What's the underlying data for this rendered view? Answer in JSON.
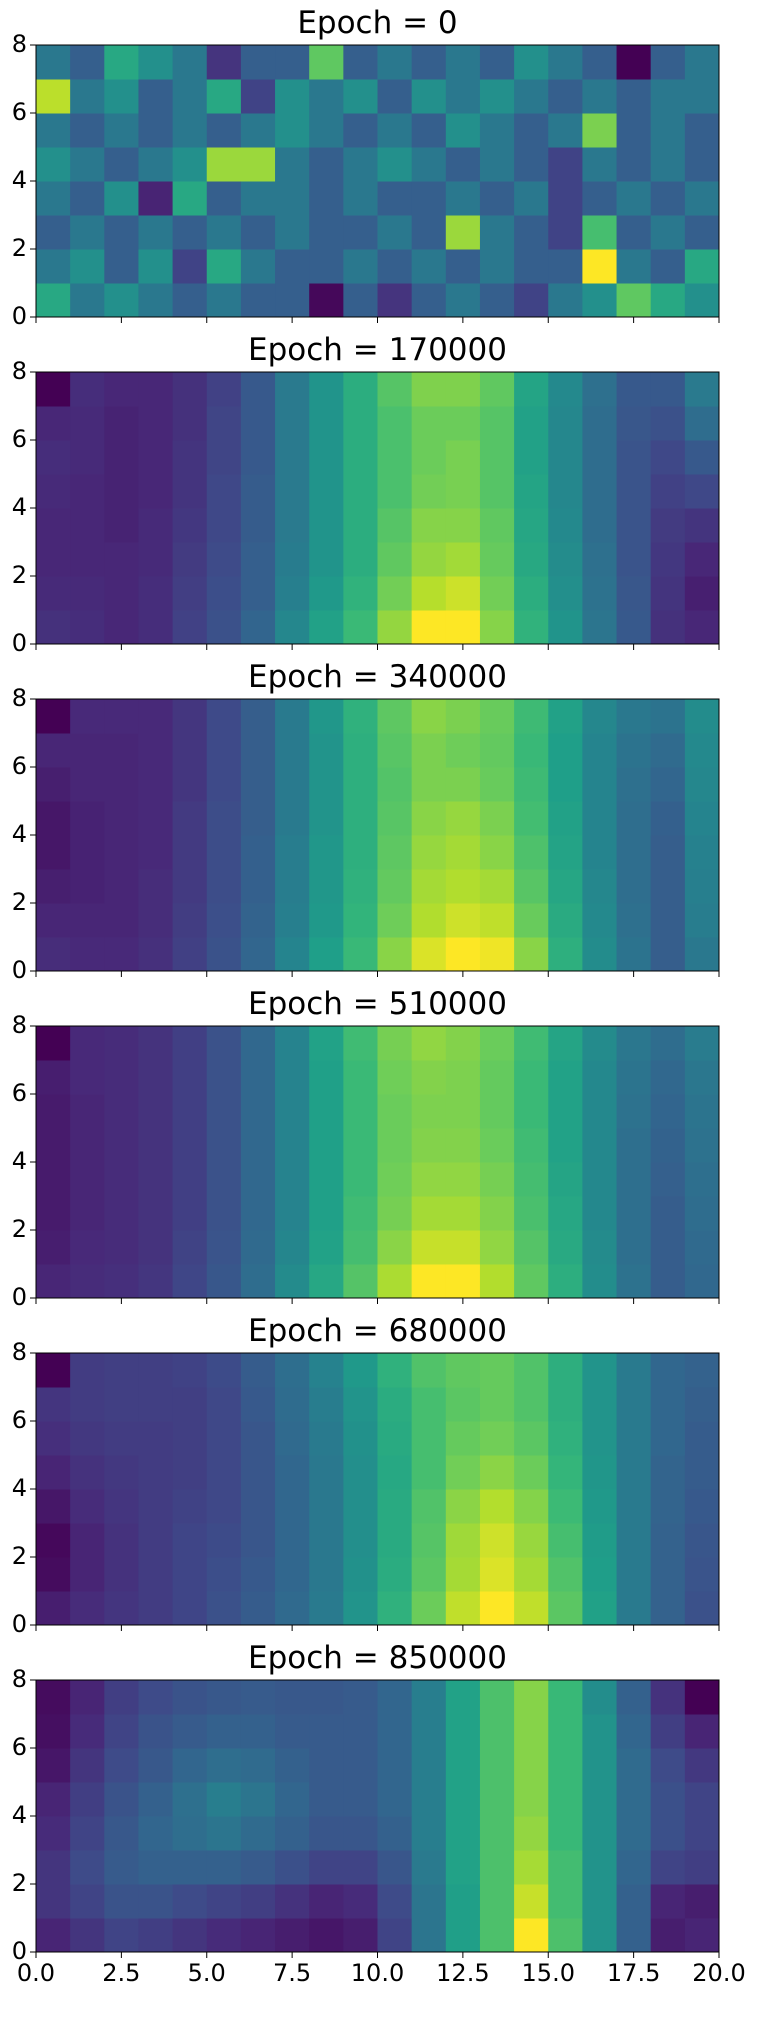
{
  "chart_data": [
    {
      "type": "heatmap",
      "title": "Epoch = 0",
      "colormap": "viridis",
      "xlim": [
        0,
        20
      ],
      "ylim": [
        0,
        8
      ],
      "xticks": [
        0,
        2.5,
        5,
        7.5,
        10,
        12.5,
        15,
        17.5,
        20
      ],
      "yticks": [
        0,
        2,
        4,
        6,
        8
      ],
      "values": [
        [
          0.6,
          0.4,
          0.5,
          0.4,
          0.3,
          0.4,
          0.3,
          0.3,
          0.02,
          0.3,
          0.15,
          0.3,
          0.4,
          0.3,
          0.2,
          0.4,
          0.5,
          0.75,
          0.6,
          0.5
        ],
        [
          0.4,
          0.5,
          0.3,
          0.5,
          0.2,
          0.6,
          0.4,
          0.3,
          0.3,
          0.4,
          0.3,
          0.4,
          0.3,
          0.4,
          0.3,
          0.3,
          1.0,
          0.4,
          0.3,
          0.6
        ],
        [
          0.3,
          0.4,
          0.3,
          0.4,
          0.3,
          0.4,
          0.3,
          0.4,
          0.3,
          0.3,
          0.4,
          0.3,
          0.85,
          0.4,
          0.3,
          0.2,
          0.7,
          0.3,
          0.4,
          0.3
        ],
        [
          0.4,
          0.3,
          0.5,
          0.1,
          0.6,
          0.3,
          0.4,
          0.4,
          0.3,
          0.4,
          0.3,
          0.3,
          0.4,
          0.3,
          0.4,
          0.2,
          0.3,
          0.4,
          0.3,
          0.4
        ],
        [
          0.5,
          0.4,
          0.3,
          0.4,
          0.5,
          0.85,
          0.85,
          0.4,
          0.3,
          0.4,
          0.5,
          0.4,
          0.3,
          0.4,
          0.3,
          0.2,
          0.4,
          0.3,
          0.4,
          0.3
        ],
        [
          0.4,
          0.3,
          0.4,
          0.3,
          0.4,
          0.3,
          0.4,
          0.5,
          0.4,
          0.3,
          0.4,
          0.3,
          0.5,
          0.4,
          0.3,
          0.4,
          0.8,
          0.3,
          0.4,
          0.3
        ],
        [
          0.9,
          0.4,
          0.5,
          0.3,
          0.4,
          0.6,
          0.2,
          0.5,
          0.4,
          0.5,
          0.3,
          0.5,
          0.4,
          0.5,
          0.4,
          0.3,
          0.4,
          0.3,
          0.4,
          0.4
        ],
        [
          0.4,
          0.3,
          0.6,
          0.5,
          0.4,
          0.15,
          0.3,
          0.3,
          0.75,
          0.3,
          0.4,
          0.3,
          0.4,
          0.3,
          0.5,
          0.4,
          0.3,
          0.0,
          0.3,
          0.4
        ]
      ]
    },
    {
      "type": "heatmap",
      "title": "Epoch = 170000",
      "colormap": "viridis",
      "xlim": [
        0,
        20
      ],
      "ylim": [
        0,
        8
      ],
      "xticks": [
        0,
        2.5,
        5,
        7.5,
        10,
        12.5,
        15,
        17.5,
        20
      ],
      "yticks": [
        0,
        2,
        4,
        6,
        8
      ],
      "values": [
        [
          0.15,
          0.14,
          0.12,
          0.14,
          0.2,
          0.25,
          0.32,
          0.45,
          0.55,
          0.65,
          0.8,
          0.95,
          0.95,
          0.78,
          0.62,
          0.5,
          0.38,
          0.28,
          0.15,
          0.12
        ],
        [
          0.13,
          0.13,
          0.12,
          0.14,
          0.19,
          0.24,
          0.3,
          0.42,
          0.52,
          0.62,
          0.75,
          0.85,
          0.88,
          0.75,
          0.6,
          0.48,
          0.37,
          0.27,
          0.16,
          0.1
        ],
        [
          0.12,
          0.12,
          0.12,
          0.13,
          0.18,
          0.23,
          0.3,
          0.41,
          0.5,
          0.6,
          0.72,
          0.8,
          0.82,
          0.73,
          0.58,
          0.47,
          0.36,
          0.26,
          0.17,
          0.12
        ],
        [
          0.12,
          0.12,
          0.11,
          0.13,
          0.17,
          0.22,
          0.29,
          0.4,
          0.5,
          0.6,
          0.7,
          0.78,
          0.78,
          0.72,
          0.57,
          0.46,
          0.35,
          0.26,
          0.18,
          0.16
        ],
        [
          0.13,
          0.12,
          0.11,
          0.12,
          0.16,
          0.22,
          0.29,
          0.4,
          0.5,
          0.6,
          0.68,
          0.75,
          0.76,
          0.7,
          0.56,
          0.45,
          0.35,
          0.26,
          0.2,
          0.22
        ],
        [
          0.14,
          0.13,
          0.11,
          0.12,
          0.16,
          0.21,
          0.28,
          0.4,
          0.5,
          0.6,
          0.68,
          0.74,
          0.76,
          0.7,
          0.55,
          0.45,
          0.35,
          0.26,
          0.22,
          0.28
        ],
        [
          0.12,
          0.13,
          0.11,
          0.12,
          0.15,
          0.21,
          0.28,
          0.4,
          0.5,
          0.6,
          0.68,
          0.74,
          0.74,
          0.7,
          0.55,
          0.45,
          0.35,
          0.27,
          0.25,
          0.35
        ],
        [
          0.02,
          0.14,
          0.12,
          0.12,
          0.15,
          0.2,
          0.28,
          0.4,
          0.5,
          0.6,
          0.7,
          0.77,
          0.77,
          0.72,
          0.56,
          0.46,
          0.36,
          0.28,
          0.28,
          0.4
        ]
      ]
    },
    {
      "type": "heatmap",
      "title": "Epoch = 340000",
      "colormap": "viridis",
      "xlim": [
        0,
        20
      ],
      "ylim": [
        0,
        8
      ],
      "xticks": [
        0,
        2.5,
        5,
        7.5,
        10,
        12.5,
        15,
        17.5,
        20
      ],
      "yticks": [
        0,
        2,
        4,
        6,
        8
      ],
      "values": [
        [
          0.14,
          0.13,
          0.13,
          0.15,
          0.2,
          0.26,
          0.33,
          0.45,
          0.55,
          0.66,
          0.8,
          0.92,
          0.97,
          0.95,
          0.8,
          0.62,
          0.48,
          0.38,
          0.3,
          0.4
        ],
        [
          0.12,
          0.12,
          0.12,
          0.14,
          0.19,
          0.25,
          0.32,
          0.43,
          0.53,
          0.64,
          0.76,
          0.86,
          0.9,
          0.88,
          0.75,
          0.6,
          0.47,
          0.37,
          0.3,
          0.42
        ],
        [
          0.1,
          0.11,
          0.12,
          0.14,
          0.18,
          0.24,
          0.31,
          0.42,
          0.52,
          0.63,
          0.74,
          0.84,
          0.86,
          0.84,
          0.72,
          0.58,
          0.46,
          0.36,
          0.3,
          0.43
        ],
        [
          0.08,
          0.11,
          0.12,
          0.13,
          0.18,
          0.24,
          0.31,
          0.42,
          0.52,
          0.62,
          0.73,
          0.82,
          0.84,
          0.8,
          0.7,
          0.57,
          0.45,
          0.36,
          0.3,
          0.44
        ],
        [
          0.08,
          0.11,
          0.12,
          0.13,
          0.18,
          0.24,
          0.3,
          0.41,
          0.51,
          0.62,
          0.72,
          0.8,
          0.82,
          0.78,
          0.68,
          0.56,
          0.45,
          0.36,
          0.31,
          0.45
        ],
        [
          0.1,
          0.12,
          0.12,
          0.13,
          0.17,
          0.23,
          0.3,
          0.41,
          0.51,
          0.62,
          0.71,
          0.78,
          0.78,
          0.75,
          0.67,
          0.55,
          0.45,
          0.37,
          0.33,
          0.46
        ],
        [
          0.12,
          0.12,
          0.12,
          0.13,
          0.17,
          0.23,
          0.3,
          0.41,
          0.51,
          0.62,
          0.72,
          0.78,
          0.76,
          0.74,
          0.66,
          0.55,
          0.45,
          0.38,
          0.35,
          0.47
        ],
        [
          0.02,
          0.13,
          0.13,
          0.13,
          0.17,
          0.23,
          0.3,
          0.41,
          0.52,
          0.63,
          0.73,
          0.8,
          0.78,
          0.75,
          0.67,
          0.56,
          0.46,
          0.4,
          0.38,
          0.48
        ]
      ]
    },
    {
      "type": "heatmap",
      "title": "Epoch = 510000",
      "colormap": "viridis",
      "xlim": [
        0,
        20
      ],
      "ylim": [
        0,
        8
      ],
      "xticks": [
        0,
        2.5,
        5,
        7.5,
        10,
        12.5,
        15,
        17.5,
        20
      ],
      "yticks": [
        0,
        2,
        4,
        6,
        8
      ],
      "values": [
        [
          0.1,
          0.12,
          0.13,
          0.15,
          0.2,
          0.26,
          0.34,
          0.46,
          0.57,
          0.7,
          0.84,
          0.96,
          0.96,
          0.85,
          0.72,
          0.6,
          0.47,
          0.36,
          0.28,
          0.32
        ],
        [
          0.08,
          0.11,
          0.12,
          0.14,
          0.19,
          0.25,
          0.33,
          0.44,
          0.55,
          0.67,
          0.79,
          0.88,
          0.88,
          0.8,
          0.7,
          0.58,
          0.46,
          0.35,
          0.28,
          0.33
        ],
        [
          0.07,
          0.1,
          0.12,
          0.14,
          0.18,
          0.24,
          0.32,
          0.43,
          0.54,
          0.66,
          0.76,
          0.83,
          0.83,
          0.78,
          0.68,
          0.57,
          0.45,
          0.35,
          0.28,
          0.34
        ],
        [
          0.07,
          0.1,
          0.12,
          0.14,
          0.18,
          0.24,
          0.32,
          0.43,
          0.54,
          0.65,
          0.75,
          0.8,
          0.8,
          0.76,
          0.67,
          0.56,
          0.45,
          0.35,
          0.29,
          0.35
        ],
        [
          0.07,
          0.1,
          0.12,
          0.14,
          0.18,
          0.24,
          0.32,
          0.43,
          0.54,
          0.65,
          0.74,
          0.78,
          0.78,
          0.74,
          0.66,
          0.55,
          0.45,
          0.35,
          0.3,
          0.36
        ],
        [
          0.07,
          0.1,
          0.12,
          0.14,
          0.18,
          0.24,
          0.32,
          0.43,
          0.54,
          0.65,
          0.74,
          0.77,
          0.77,
          0.73,
          0.65,
          0.55,
          0.45,
          0.36,
          0.31,
          0.37
        ],
        [
          0.08,
          0.11,
          0.12,
          0.14,
          0.18,
          0.24,
          0.32,
          0.43,
          0.54,
          0.65,
          0.75,
          0.78,
          0.77,
          0.73,
          0.65,
          0.55,
          0.45,
          0.37,
          0.32,
          0.38
        ],
        [
          0.0,
          0.11,
          0.12,
          0.14,
          0.18,
          0.24,
          0.32,
          0.43,
          0.55,
          0.66,
          0.76,
          0.8,
          0.78,
          0.74,
          0.66,
          0.56,
          0.46,
          0.38,
          0.34,
          0.4
        ]
      ]
    },
    {
      "type": "heatmap",
      "title": "Epoch = 680000",
      "colormap": "viridis",
      "xlim": [
        0,
        20
      ],
      "ylim": [
        0,
        8
      ],
      "xticks": [
        0,
        2.5,
        5,
        7.5,
        10,
        12.5,
        15,
        17.5,
        20
      ],
      "yticks": [
        0,
        2,
        4,
        6,
        8
      ],
      "values": [
        [
          0.08,
          0.12,
          0.15,
          0.17,
          0.2,
          0.24,
          0.28,
          0.33,
          0.4,
          0.5,
          0.62,
          0.75,
          0.88,
          0.97,
          0.88,
          0.72,
          0.55,
          0.4,
          0.3,
          0.24
        ],
        [
          0.03,
          0.1,
          0.14,
          0.17,
          0.2,
          0.23,
          0.27,
          0.32,
          0.39,
          0.49,
          0.6,
          0.72,
          0.84,
          0.92,
          0.84,
          0.7,
          0.54,
          0.4,
          0.3,
          0.25
        ],
        [
          0.02,
          0.1,
          0.14,
          0.17,
          0.2,
          0.22,
          0.26,
          0.32,
          0.39,
          0.48,
          0.59,
          0.71,
          0.83,
          0.9,
          0.82,
          0.68,
          0.53,
          0.4,
          0.3,
          0.26
        ],
        [
          0.06,
          0.12,
          0.15,
          0.17,
          0.19,
          0.21,
          0.26,
          0.32,
          0.39,
          0.48,
          0.59,
          0.7,
          0.8,
          0.86,
          0.79,
          0.66,
          0.52,
          0.4,
          0.31,
          0.27
        ],
        [
          0.1,
          0.14,
          0.16,
          0.17,
          0.18,
          0.21,
          0.26,
          0.32,
          0.39,
          0.48,
          0.58,
          0.68,
          0.76,
          0.8,
          0.75,
          0.64,
          0.51,
          0.4,
          0.31,
          0.28
        ],
        [
          0.13,
          0.16,
          0.17,
          0.17,
          0.18,
          0.21,
          0.26,
          0.33,
          0.4,
          0.49,
          0.59,
          0.68,
          0.74,
          0.76,
          0.72,
          0.62,
          0.5,
          0.4,
          0.32,
          0.28
        ],
        [
          0.15,
          0.17,
          0.18,
          0.18,
          0.18,
          0.21,
          0.27,
          0.34,
          0.41,
          0.5,
          0.6,
          0.68,
          0.72,
          0.74,
          0.7,
          0.61,
          0.5,
          0.4,
          0.32,
          0.29
        ],
        [
          0.0,
          0.17,
          0.18,
          0.18,
          0.19,
          0.22,
          0.28,
          0.35,
          0.43,
          0.52,
          0.62,
          0.7,
          0.73,
          0.74,
          0.7,
          0.61,
          0.5,
          0.4,
          0.32,
          0.3
        ]
      ]
    },
    {
      "type": "heatmap",
      "title": "Epoch = 850000",
      "colormap": "viridis",
      "xlim": [
        0,
        20
      ],
      "ylim": [
        0,
        8
      ],
      "xticks": [
        {
          "value": 0,
          "label": "0.0"
        },
        2.5,
        {
          "value": 5,
          "label": "5.0"
        },
        7.5,
        {
          "value": 10,
          "label": "10.0"
        },
        12.5,
        {
          "value": 15,
          "label": "15.0"
        },
        17.5,
        {
          "value": 20,
          "label": "20.0"
        }
      ],
      "yticks": [
        0,
        2,
        4,
        6,
        8
      ],
      "values": [
        [
          0.1,
          0.15,
          0.2,
          0.18,
          0.15,
          0.12,
          0.1,
          0.08,
          0.06,
          0.08,
          0.2,
          0.38,
          0.55,
          0.7,
          0.98,
          0.7,
          0.5,
          0.3,
          0.08,
          0.1
        ],
        [
          0.15,
          0.2,
          0.25,
          0.25,
          0.22,
          0.2,
          0.18,
          0.14,
          0.1,
          0.12,
          0.22,
          0.38,
          0.55,
          0.7,
          0.9,
          0.68,
          0.5,
          0.3,
          0.1,
          0.08
        ],
        [
          0.15,
          0.22,
          0.28,
          0.3,
          0.3,
          0.3,
          0.28,
          0.24,
          0.2,
          0.2,
          0.26,
          0.4,
          0.56,
          0.7,
          0.85,
          0.68,
          0.5,
          0.32,
          0.2,
          0.18
        ],
        [
          0.12,
          0.2,
          0.27,
          0.32,
          0.35,
          0.38,
          0.34,
          0.3,
          0.26,
          0.26,
          0.3,
          0.42,
          0.56,
          0.7,
          0.82,
          0.66,
          0.5,
          0.34,
          0.24,
          0.2
        ],
        [
          0.1,
          0.18,
          0.25,
          0.3,
          0.36,
          0.42,
          0.38,
          0.32,
          0.28,
          0.28,
          0.32,
          0.42,
          0.56,
          0.7,
          0.8,
          0.66,
          0.5,
          0.34,
          0.24,
          0.2
        ],
        [
          0.06,
          0.15,
          0.22,
          0.27,
          0.32,
          0.35,
          0.34,
          0.3,
          0.28,
          0.28,
          0.32,
          0.42,
          0.56,
          0.7,
          0.8,
          0.66,
          0.5,
          0.34,
          0.22,
          0.16
        ],
        [
          0.04,
          0.12,
          0.2,
          0.25,
          0.28,
          0.3,
          0.3,
          0.28,
          0.28,
          0.28,
          0.32,
          0.42,
          0.56,
          0.7,
          0.8,
          0.66,
          0.5,
          0.32,
          0.18,
          0.1
        ],
        [
          0.03,
          0.1,
          0.18,
          0.22,
          0.25,
          0.27,
          0.28,
          0.27,
          0.27,
          0.28,
          0.32,
          0.42,
          0.56,
          0.7,
          0.8,
          0.66,
          0.48,
          0.3,
          0.14,
          0.0
        ]
      ]
    }
  ]
}
